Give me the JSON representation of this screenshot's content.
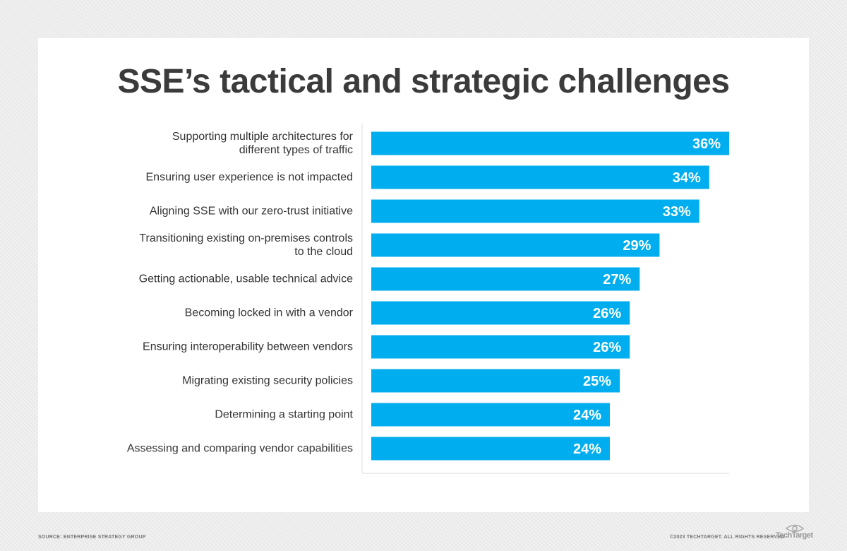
{
  "chart_data": {
    "type": "bar",
    "orientation": "horizontal",
    "title": "SSE’s tactical and strategic challenges",
    "categories": [
      "Supporting multiple architectures for\ndifferent types of traffic",
      "Ensuring user experience is not impacted",
      "Aligning SSE with our zero-trust initiative",
      "Transitioning existing on-premises controls\nto the cloud",
      "Getting actionable, usable technical advice",
      "Becoming locked in with a vendor",
      "Ensuring interoperability between vendors",
      "Migrating existing security policies",
      "Determining a starting point",
      "Assessing and comparing vendor capabilities"
    ],
    "values": [
      36,
      34,
      33,
      29,
      27,
      26,
      26,
      25,
      24,
      24
    ],
    "value_labels": [
      "36%",
      "34%",
      "33%",
      "29%",
      "27%",
      "26%",
      "26%",
      "25%",
      "24%",
      "24%"
    ],
    "color": "#00aeef"
  },
  "footer": {
    "source": "SOURCE: ENTERPRISE STRATEGY GROUP",
    "copyright": "©2023 TECHTARGET. ALL RIGHTS RESERVED",
    "logo": "TechTarget"
  }
}
